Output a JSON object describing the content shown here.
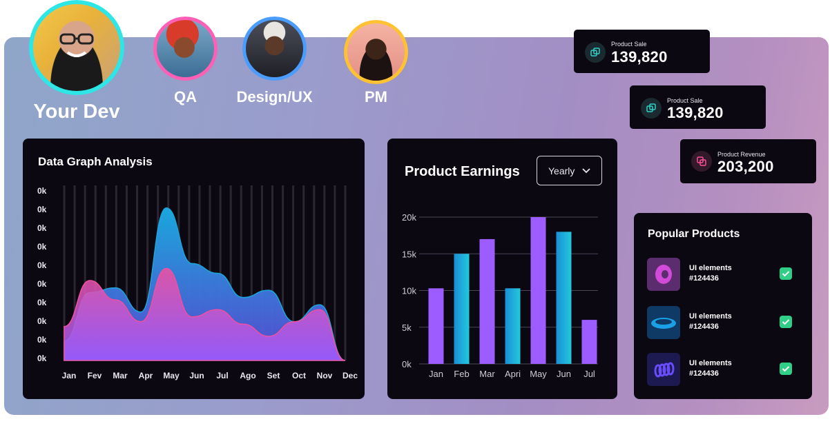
{
  "team": {
    "members": [
      {
        "label": "Your Dev",
        "ring_color": "#2ee6e6"
      },
      {
        "label": "QA",
        "ring_color": "#ff5fb4"
      },
      {
        "label": "Design/UX",
        "ring_color": "#4a9cff"
      },
      {
        "label": "PM",
        "ring_color": "#ffc233"
      }
    ]
  },
  "stats": [
    {
      "label": "Product Sale",
      "value": "139,820",
      "icon": "copy-icon",
      "accent": "#2fd3c8"
    },
    {
      "label": "Product Sale",
      "value": "139,820",
      "icon": "copy-icon",
      "accent": "#2fd3c8"
    },
    {
      "label": "Product Revenue",
      "value": "203,200",
      "icon": "copy-icon",
      "accent": "#ff4f9a"
    }
  ],
  "data_graph": {
    "title": "Data Graph Analysis"
  },
  "product_earnings": {
    "title": "Product Earnings",
    "period_select": "Yearly"
  },
  "popular_products": {
    "title": "Popular Products",
    "items": [
      {
        "name": "UI elements",
        "code": "#124436",
        "checked": true,
        "thumb": "torus-icon"
      },
      {
        "name": "UI elements",
        "code": "#124436",
        "checked": true,
        "thumb": "ring-icon"
      },
      {
        "name": "UI elements",
        "code": "#124436",
        "checked": true,
        "thumb": "spring-icon"
      }
    ]
  },
  "chart_data": [
    {
      "type": "area",
      "title": "Data Graph Analysis",
      "categories": [
        "Jan",
        "Fev",
        "Mar",
        "Apr",
        "May",
        "Jun",
        "Jul",
        "Ago",
        "Set",
        "Oct",
        "Nov",
        "Dec"
      ],
      "y_tick_labels": [
        "0k",
        "0k",
        "0k",
        "0k",
        "0k",
        "0k",
        "0k",
        "0k",
        "0k",
        "0k"
      ],
      "series": [
        {
          "color": "#1aa7dc",
          "values": [
            0.8,
            2.8,
            3.0,
            2.0,
            6.3,
            4.0,
            3.6,
            2.6,
            2.9,
            1.6,
            2.3,
            0.0
          ]
        },
        {
          "color": "#f050a0",
          "values": [
            1.4,
            3.3,
            2.5,
            1.6,
            3.8,
            1.8,
            2.1,
            1.5,
            1.0,
            1.6,
            2.1,
            0.0
          ]
        }
      ],
      "grid": true
    },
    {
      "type": "bar",
      "title": "Product Earnings",
      "categories": [
        "Jan",
        "Feb",
        "Mar",
        "Apri",
        "May",
        "Jun",
        "Jul"
      ],
      "y_ticks": [
        "0k",
        "5k",
        "10k",
        "15k",
        "20k"
      ],
      "values": [
        10300,
        15000,
        17000,
        10300,
        20000,
        18000,
        6000
      ],
      "ylim": [
        0,
        20000
      ],
      "colors": [
        "#9d5cff",
        "#1cb6d6",
        "#9d5cff",
        "#1cb6d6",
        "#9d5cff",
        "#1cb6d6",
        "#9d5cff"
      ],
      "grid": true
    }
  ]
}
